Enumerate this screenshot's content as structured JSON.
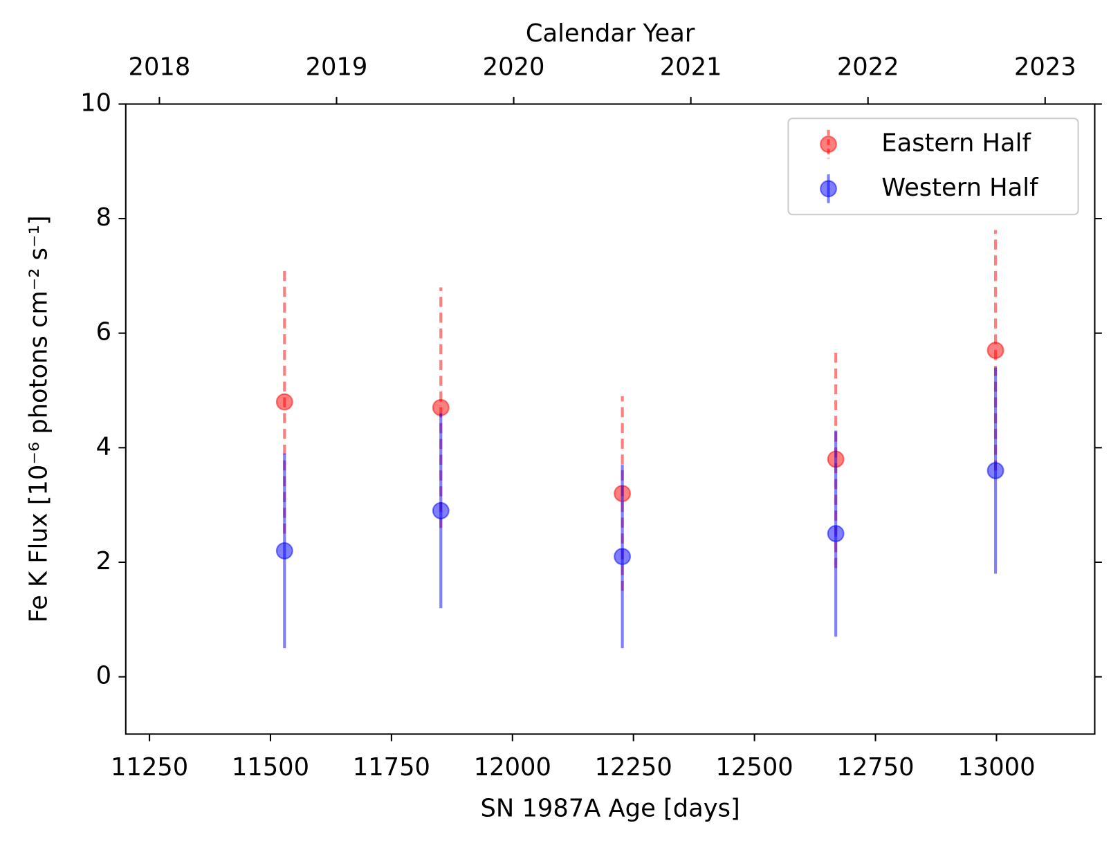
{
  "chart_data": {
    "type": "errorbar",
    "xlabel": "SN 1987A Age [days]",
    "ylabel": "Fe K Flux [10⁻⁶ photons cm⁻² s⁻¹]",
    "x2label": "Calendar Year",
    "xlim": [
      11201,
      13203
    ],
    "xticks": [
      11250,
      11500,
      11750,
      12000,
      12250,
      12500,
      12750,
      13000
    ],
    "x2lim": [
      2017.81,
      2023.28
    ],
    "x2ticks": [
      2018,
      2019,
      2020,
      2021,
      2022,
      2023
    ],
    "ylim": [
      -1,
      10
    ],
    "yticks": [
      0,
      2,
      4,
      6,
      8,
      10
    ],
    "legend": "upper right",
    "series": [
      {
        "name": "Eastern Half",
        "color": "#ff0000",
        "linestyle": "dashed",
        "x": [
          11529,
          11852,
          12227,
          12668,
          12998
        ],
        "values": [
          4.8,
          4.7,
          3.2,
          3.8,
          5.7
        ],
        "errors": [
          2.3,
          2.1,
          1.7,
          1.9,
          2.1
        ]
      },
      {
        "name": "Western Half",
        "color": "#0000ff",
        "linestyle": "solid",
        "x": [
          11529,
          11852,
          12227,
          12668,
          12998
        ],
        "values": [
          2.2,
          2.9,
          2.1,
          2.5,
          3.6
        ],
        "errors": [
          1.7,
          1.7,
          1.6,
          1.8,
          1.8
        ]
      }
    ]
  }
}
